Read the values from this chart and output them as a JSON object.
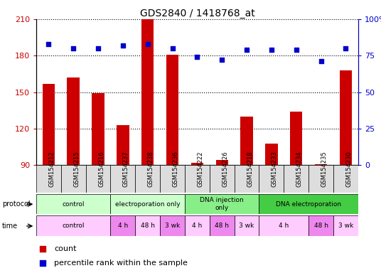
{
  "title": "GDS2840 / 1418768_at",
  "samples": [
    "GSM154212",
    "GSM154215",
    "GSM154216",
    "GSM154237",
    "GSM154238",
    "GSM154236",
    "GSM154222",
    "GSM154226",
    "GSM154218",
    "GSM154233",
    "GSM154234",
    "GSM154235",
    "GSM154230"
  ],
  "counts": [
    157,
    162,
    149,
    123,
    210,
    181,
    92,
    94,
    130,
    108,
    134,
    91,
    168
  ],
  "percentile_ranks": [
    83,
    80,
    80,
    82,
    83,
    80,
    74,
    72,
    79,
    79,
    79,
    71,
    80
  ],
  "ymin": 90,
  "ymax": 210,
  "y_ticks_left": [
    90,
    120,
    150,
    180,
    210
  ],
  "y_ticks_right": [
    0,
    25,
    50,
    75,
    100
  ],
  "bar_color": "#cc0000",
  "dot_color": "#0000cc",
  "bg_color": "#ffffff",
  "proto_groups": [
    {
      "label": "control",
      "start": 0,
      "end": 3,
      "color": "#ccffcc"
    },
    {
      "label": "electroporation only",
      "start": 3,
      "end": 6,
      "color": "#ccffcc"
    },
    {
      "label": "DNA injection\nonly",
      "start": 6,
      "end": 9,
      "color": "#88ee88"
    },
    {
      "label": "DNA electroporation",
      "start": 9,
      "end": 13,
      "color": "#44cc44"
    }
  ],
  "time_groups": [
    {
      "label": "control",
      "start": 0,
      "end": 3,
      "color": "#ffccff"
    },
    {
      "label": "4 h",
      "start": 3,
      "end": 4,
      "color": "#ee88ee"
    },
    {
      "label": "48 h",
      "start": 4,
      "end": 5,
      "color": "#ffccff"
    },
    {
      "label": "3 wk",
      "start": 5,
      "end": 6,
      "color": "#ee88ee"
    },
    {
      "label": "4 h",
      "start": 6,
      "end": 7,
      "color": "#ffccff"
    },
    {
      "label": "48 h",
      "start": 7,
      "end": 8,
      "color": "#ee88ee"
    },
    {
      "label": "3 wk",
      "start": 8,
      "end": 9,
      "color": "#ffccff"
    },
    {
      "label": "4 h",
      "start": 9,
      "end": 11,
      "color": "#ffccff"
    },
    {
      "label": "48 h",
      "start": 11,
      "end": 12,
      "color": "#ee88ee"
    },
    {
      "label": "3 wk",
      "start": 12,
      "end": 13,
      "color": "#ffccff"
    }
  ]
}
